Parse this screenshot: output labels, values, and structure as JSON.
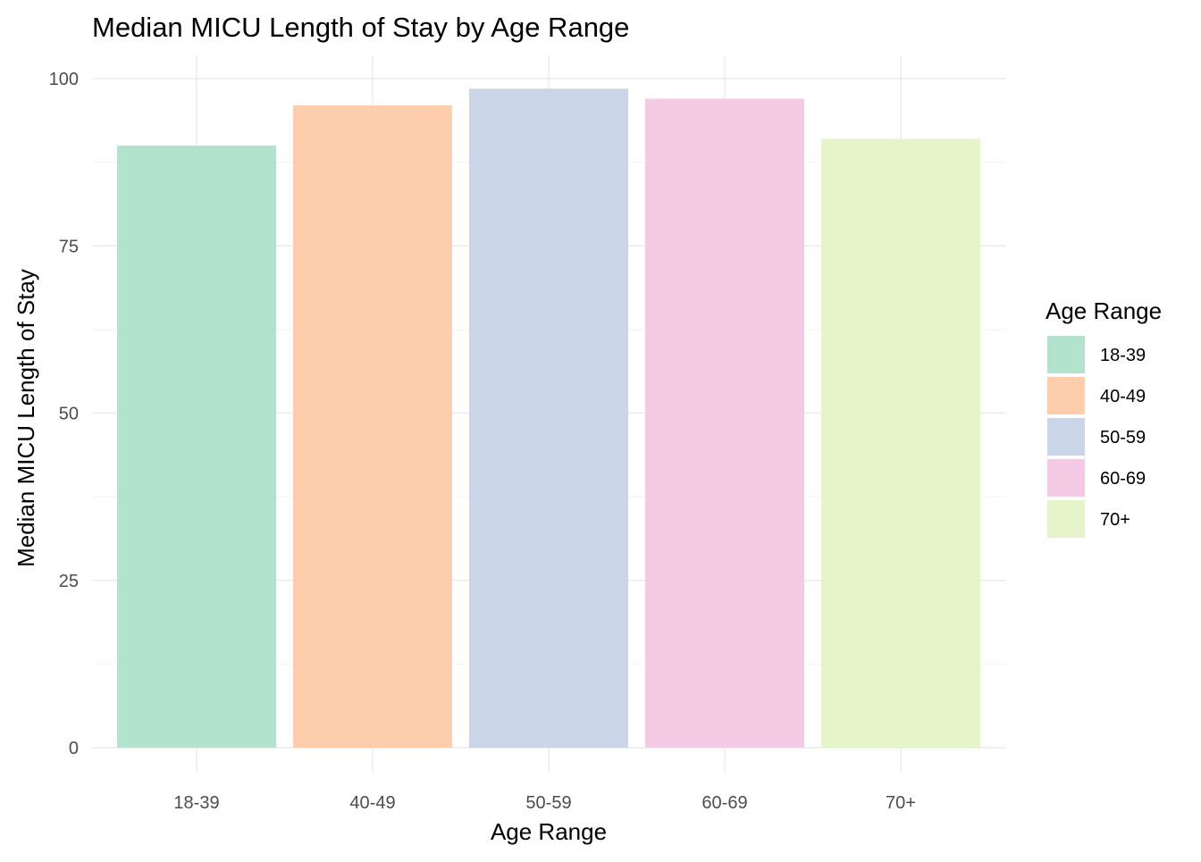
{
  "chart_data": {
    "type": "bar",
    "title": "Median MICU Length of Stay by Age Range",
    "xlabel": "Age Range",
    "ylabel": "Median MICU Length of Stay",
    "categories": [
      "18-39",
      "40-49",
      "50-59",
      "60-69",
      "70+"
    ],
    "values": [
      90,
      96,
      98.5,
      97,
      91
    ],
    "colors": [
      "#B3E2CD",
      "#FDCDAC",
      "#CBD5E8",
      "#F4CAE4",
      "#E6F5C9"
    ],
    "ylim": [
      0,
      103.4
    ],
    "yticks": [
      0,
      25,
      50,
      75,
      100
    ],
    "yticks_minor": [
      12.5,
      37.5,
      62.5,
      87.5
    ],
    "grid": true,
    "legend": {
      "title": "Age Range",
      "placement": "right",
      "entries": [
        "18-39",
        "40-49",
        "50-59",
        "60-69",
        "70+"
      ]
    }
  }
}
